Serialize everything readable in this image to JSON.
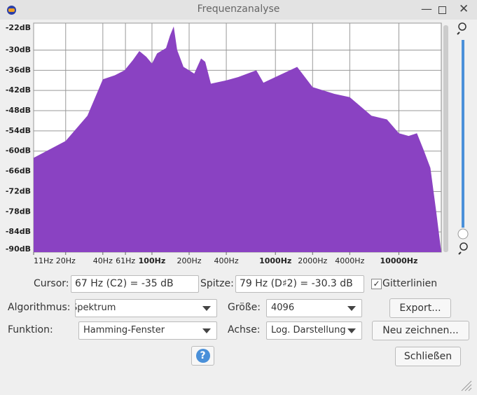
{
  "window": {
    "title": "Frequenzanalyse"
  },
  "chart_data": {
    "type": "area",
    "color": "#8a42c2",
    "grid": true,
    "log_x": true,
    "x": [
      11,
      20,
      30,
      40,
      50,
      60,
      70,
      79,
      90,
      100,
      110,
      130,
      140,
      150,
      160,
      180,
      200,
      220,
      250,
      270,
      300,
      400,
      500,
      700,
      800,
      1000,
      1500,
      2000,
      3000,
      4000,
      6000,
      8000,
      10000,
      12000,
      14000,
      16000,
      18000,
      20000,
      22050
    ],
    "values": [
      -62,
      -57,
      -49.5,
      -38.7,
      -37.5,
      -36,
      -33,
      -30.3,
      -32,
      -34,
      -31,
      -29.4,
      -25.7,
      -23,
      -30,
      -35,
      -36,
      -37,
      -32.5,
      -33.5,
      -40,
      -39,
      -38,
      -36,
      -39.7,
      -38,
      -35,
      -41,
      -43,
      -44,
      -49.5,
      -50.6,
      -54.7,
      -55.5,
      -54.7,
      -60,
      -65,
      -77.6,
      -90
    ],
    "xlim": [
      11,
      22050
    ],
    "ylim": [
      -90,
      -22
    ],
    "xticks": [
      {
        "value": 11,
        "label": "11Hz"
      },
      {
        "value": 20,
        "label": "20Hz"
      },
      {
        "value": 40,
        "label": "40Hz"
      },
      {
        "value": 61,
        "label": "61Hz"
      },
      {
        "value": 100,
        "label": "100Hz"
      },
      {
        "value": 200,
        "label": "200Hz"
      },
      {
        "value": 400,
        "label": "400Hz"
      },
      {
        "value": 1000,
        "label": "1000Hz"
      },
      {
        "value": 2000,
        "label": "2000Hz"
      },
      {
        "value": 4000,
        "label": "4000Hz"
      },
      {
        "value": 10000,
        "label": "10000Hz"
      }
    ],
    "yticks": [
      {
        "value": -22,
        "label": "-22dB"
      },
      {
        "value": -30,
        "label": "-30dB"
      },
      {
        "value": -36,
        "label": "-36dB"
      },
      {
        "value": -42,
        "label": "-42dB"
      },
      {
        "value": -48,
        "label": "-48dB"
      },
      {
        "value": -54,
        "label": "-54dB"
      },
      {
        "value": -60,
        "label": "-60dB"
      },
      {
        "value": -66,
        "label": "-66dB"
      },
      {
        "value": -72,
        "label": "-72dB"
      },
      {
        "value": -78,
        "label": "-78dB"
      },
      {
        "value": -84,
        "label": "-84dB"
      },
      {
        "value": -90,
        "label": "-90dB"
      }
    ]
  },
  "controls": {
    "cursor_label": "Cursor:",
    "cursor_value": "67 Hz (C2) = -35 dB",
    "peak_label": "Spitze:",
    "peak_value": "79 Hz (D♯2) = -30.3 dB",
    "grid_label": "Gitterlinien",
    "algorithm_label": "Algorithmus:",
    "algorithm": "Spektrum",
    "size_label": "Größe:",
    "size": "4096",
    "export": "Export...",
    "function_label": "Funktion:",
    "function": "Hamming-Fenster",
    "axis_label": "Achse:",
    "axis": "Log. Darstellung",
    "redraw": "Neu zeichnen...",
    "help": "?",
    "close": "Schließen"
  }
}
